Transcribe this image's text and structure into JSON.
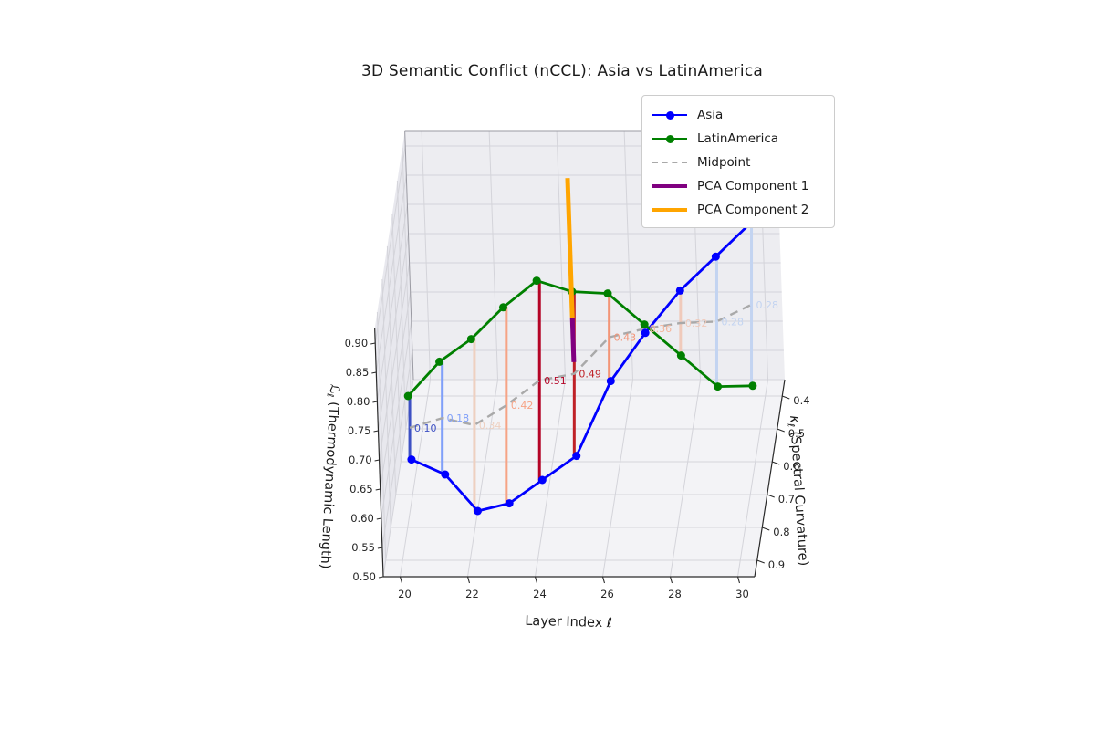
{
  "title": "3D Semantic Conflict (nCCL): Asia vs LatinAmerica",
  "legend": {
    "items": [
      {
        "label": "Asia",
        "color": "#0000ff",
        "style": "line-marker"
      },
      {
        "label": "LatinAmerica",
        "color": "#008000",
        "style": "line-marker"
      },
      {
        "label": "Midpoint",
        "color": "#a9a9a9",
        "style": "dashed"
      },
      {
        "label": "PCA Component 1",
        "color": "#800080",
        "style": "thick"
      },
      {
        "label": "PCA Component 2",
        "color": "#ffa500",
        "style": "thick"
      }
    ]
  },
  "axes": {
    "x": {
      "label": "Layer Index ℓ",
      "ticks": [
        "20",
        "22",
        "24",
        "26",
        "28",
        "30"
      ],
      "range": [
        19.5,
        30.5
      ]
    },
    "y": {
      "label_symbol": "κ",
      "label_sub": "ℓ",
      "label_rest": " (Spectral Curvature)",
      "ticks": [
        "0.4",
        "0.5",
        "0.6",
        "0.7",
        "0.8",
        "0.9"
      ],
      "range": [
        0.35,
        0.95
      ],
      "inverted": true
    },
    "z": {
      "label_symbol": "ℒ",
      "label_sub": "ℓ",
      "label_rest": " (Thermodynamic Length)",
      "ticks": [
        "0.50",
        "0.55",
        "0.60",
        "0.65",
        "0.70",
        "0.75",
        "0.80",
        "0.85",
        "0.90"
      ],
      "range": [
        0.5,
        0.925
      ]
    }
  },
  "chart_data": {
    "type": "line",
    "projection": "3d",
    "x": [
      20,
      21,
      22,
      23,
      24,
      25,
      26,
      27,
      28,
      29,
      30
    ],
    "series": [
      {
        "name": "Asia",
        "color": "#0000ff",
        "curvature": [
          0.7,
          0.71,
          0.75,
          0.78,
          0.78,
          0.76,
          0.71,
          0.67,
          0.63,
          0.58,
          0.55
        ],
        "length": [
          0.56,
          0.54,
          0.5,
          0.53,
          0.57,
          0.6,
          0.7,
          0.76,
          0.81,
          0.84,
          0.88
        ]
      },
      {
        "name": "LatinAmerica",
        "color": "#008000",
        "curvature": [
          0.72,
          0.74,
          0.76,
          0.77,
          0.76,
          0.74,
          0.71,
          0.68,
          0.65,
          0.62,
          0.6
        ],
        "length": [
          0.68,
          0.75,
          0.8,
          0.86,
          0.9,
          0.87,
          0.85,
          0.78,
          0.71,
          0.64,
          0.63
        ]
      }
    ],
    "midpoint": {
      "name": "Midpoint",
      "color": "#a9a9a9",
      "style": "dashed"
    },
    "conflict_lines": [
      {
        "layer": 20,
        "value": "0.10",
        "color": "#3d50c3"
      },
      {
        "layer": 21,
        "value": "0.18",
        "color": "#7f9ff9"
      },
      {
        "layer": 22,
        "value": "0.34",
        "color": "#eed0c0"
      },
      {
        "layer": 23,
        "value": "0.42",
        "color": "#f6a385"
      },
      {
        "layer": 24,
        "value": "0.51",
        "color": "#b40426"
      },
      {
        "layer": 25,
        "value": "0.49",
        "color": "#bf2127"
      },
      {
        "layer": 26,
        "value": "0.43",
        "color": "#f39577"
      },
      {
        "layer": 27,
        "value": "0.36",
        "color": "#f4b499"
      },
      {
        "layer": 28,
        "value": "0.32",
        "color": "#f0cabb"
      },
      {
        "layer": 29,
        "value": "0.28",
        "color": "#c3d4f1"
      },
      {
        "layer": 30,
        "value": "0.28",
        "color": "#c3d4f1"
      }
    ],
    "pca_lines": [
      {
        "name": "PCA Component 1",
        "color": "#800080",
        "layer": 25,
        "curvature": 0.75,
        "length_span": [
          0.755,
          0.83
        ]
      },
      {
        "name": "PCA Component 2",
        "color": "#ffa500",
        "layer": 25,
        "curvature": 0.75,
        "length_span": [
          0.83,
          1.07
        ]
      }
    ]
  }
}
